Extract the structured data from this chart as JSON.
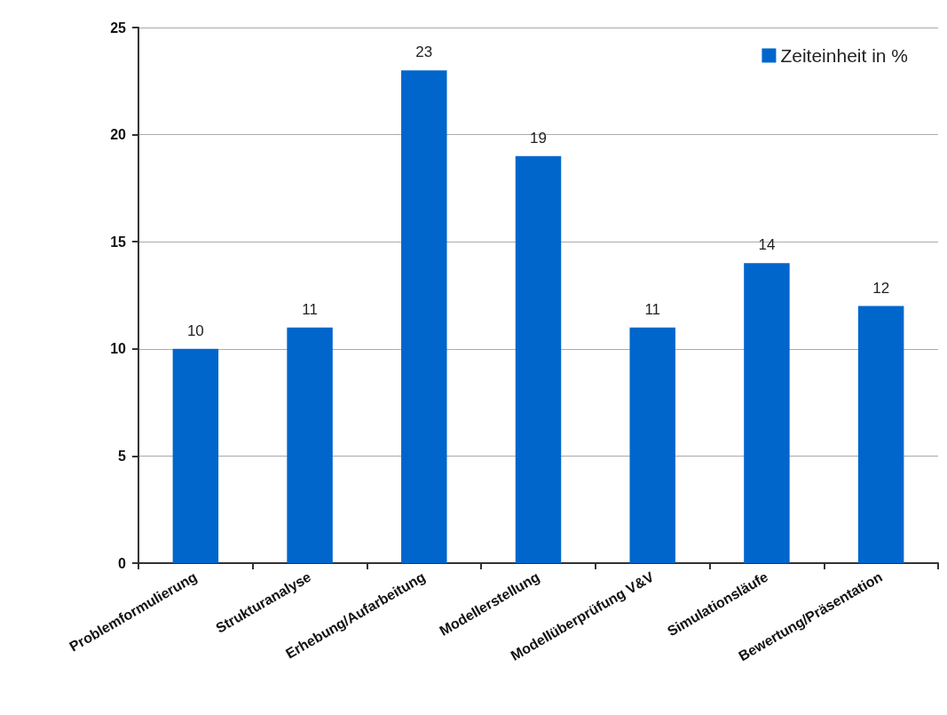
{
  "chart_data": {
    "type": "bar",
    "categories": [
      "Problemformulierung",
      "Strukturanalyse",
      "Erhebung/Aufarbeitung",
      "Modellerstellung",
      "Modellüberprüfung V&V",
      "Simulationsläufe",
      "Bewertung/Präsentation"
    ],
    "series": [
      {
        "name": "Zeiteinheit in %",
        "color": "#0066cc",
        "values": [
          10,
          11,
          23,
          19,
          11,
          14,
          12
        ]
      }
    ],
    "ylim": [
      0,
      25
    ],
    "yticks": [
      0,
      5,
      10,
      15,
      20,
      25
    ],
    "grid": "y",
    "legend": "top right",
    "data_labels": true
  }
}
